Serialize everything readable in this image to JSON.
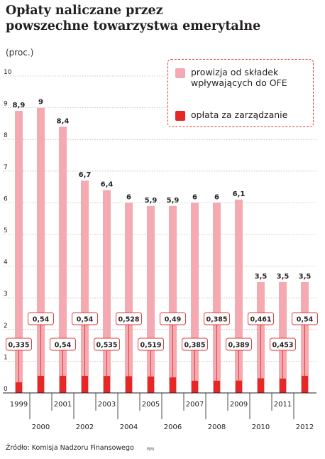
{
  "header": {
    "title_line1": "Opłaty naliczane przez",
    "title_line2": "powszechne towarzystwa emerytalne",
    "unit": "(proc.)"
  },
  "legend": {
    "commission": "prowizja od składek wpływających do OFE",
    "management": "opłata za zarządzanie"
  },
  "footer": {
    "source": "Źródło: Komisja Nadzoru Finansowego",
    "credit": "RM"
  },
  "colors": {
    "commission": "#f4aab0",
    "management": "#e52826",
    "label_border": "#e23a3a"
  },
  "chart_data": {
    "type": "bar",
    "categories": [
      "1999",
      "2000",
      "2001",
      "2002",
      "2003",
      "2004",
      "2005",
      "2006",
      "2007",
      "2008",
      "2009",
      "2010",
      "2011",
      "2012"
    ],
    "series": [
      {
        "name": "prowizja od składek wpływających do OFE",
        "values": [
          8.9,
          9,
          8.4,
          6.7,
          6.4,
          6,
          5.9,
          5.9,
          6,
          6,
          6.1,
          3.5,
          3.5,
          3.5
        ],
        "labels": [
          "8,9",
          "9",
          "8,4",
          "6,7",
          "6,4",
          "6",
          "5,9",
          "5,9",
          "6",
          "6",
          "6,1",
          "3,5",
          "3,5",
          "3,5"
        ]
      },
      {
        "name": "opłata za zarządzanie",
        "values": [
          0.335,
          0.54,
          0.54,
          0.54,
          0.535,
          0.528,
          0.519,
          0.49,
          0.385,
          0.385,
          0.389,
          0.461,
          0.453,
          0.54
        ],
        "labels": [
          "0,335",
          "0,54",
          "0,54",
          "0,54",
          "0,535",
          "0,528",
          "0,519",
          "0,49",
          "0,385",
          "0,385",
          "0,389",
          "0,461",
          "0,453",
          "0,54"
        ]
      }
    ],
    "y_ticks": [
      "0",
      "1",
      "2",
      "3",
      "4",
      "5",
      "6",
      "7",
      "8",
      "9",
      "10"
    ],
    "ylim": [
      0,
      10
    ],
    "grid": true,
    "legend_position": "top-right"
  }
}
